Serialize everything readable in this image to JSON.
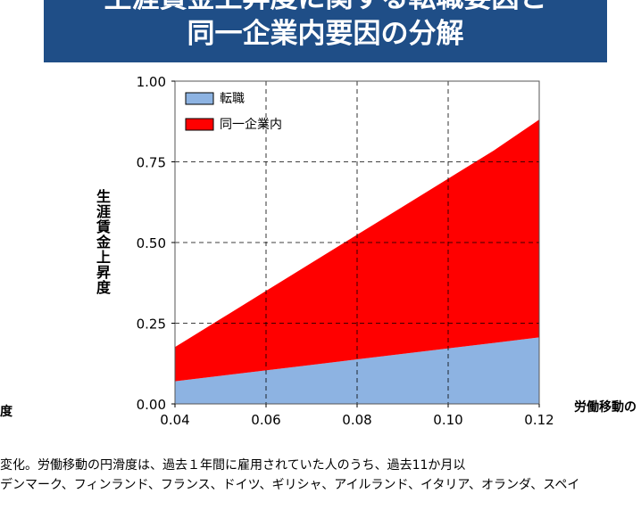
{
  "header": {
    "title_line1": "生涯賃金上昇度に関する転職要因と",
    "title_line2": "同一企業内要因の分解"
  },
  "left_cut_label": "度",
  "right_cut_label": "労働移動の",
  "footnote": {
    "line1": "変化。労働移動の円滑度は、過去１年間に雇用されていた人のうち、過去11か月以",
    "line2": "デンマーク、フィンランド、フランス、ドイツ、ギリシャ、アイルランド、イタリア、オランダ、スペイ"
  },
  "chart_data": {
    "type": "area",
    "stacked": true,
    "ylabel": "生涯賃金上昇度",
    "xlabel": "労働移動の",
    "x": [
      0.04,
      0.05,
      0.06,
      0.07,
      0.08,
      0.09,
      0.1,
      0.11,
      0.12
    ],
    "x_ticks": [
      "0.04",
      "0.06",
      "0.08",
      "0.10",
      "0.12"
    ],
    "y_ticks": [
      "0.00",
      "0.25",
      "0.50",
      "0.75",
      "1.00"
    ],
    "xlim": [
      0.04,
      0.12
    ],
    "ylim": [
      0.0,
      1.0
    ],
    "grid": "dashed",
    "legend_position": "top-left",
    "series": [
      {
        "name": "転職",
        "color": "#8db3e2",
        "values": [
          0.07,
          0.087,
          0.104,
          0.121,
          0.138,
          0.155,
          0.172,
          0.189,
          0.206
        ]
      },
      {
        "name": "同一企業内",
        "color": "#ff0000",
        "values": [
          0.106,
          0.176,
          0.246,
          0.316,
          0.386,
          0.456,
          0.526,
          0.596,
          0.675
        ]
      }
    ]
  }
}
